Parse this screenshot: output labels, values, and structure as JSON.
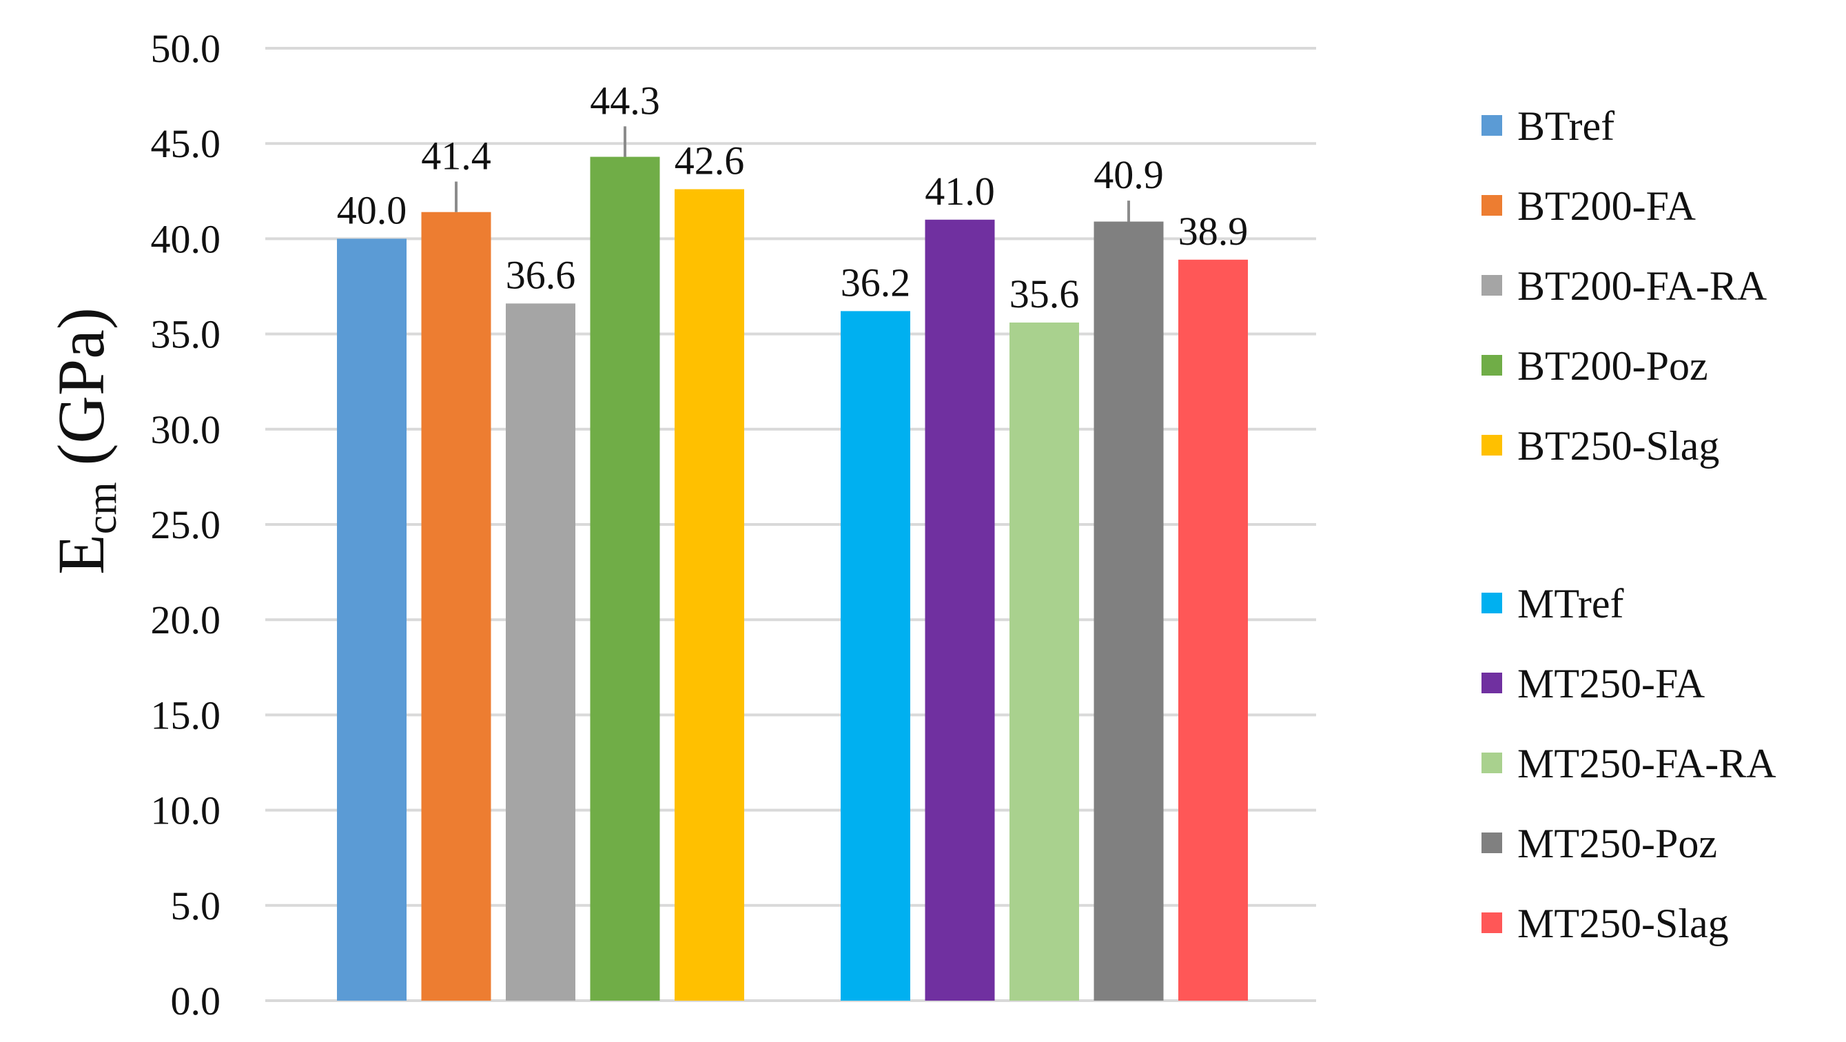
{
  "chart_data": {
    "type": "bar",
    "ylabel": "E",
    "ylabel_subscript": "cm",
    "ylabel_unit": " (GPa)",
    "ylim": [
      0,
      50
    ],
    "yticks": [
      "0.0",
      "5.0",
      "10.0",
      "15.0",
      "20.0",
      "25.0",
      "30.0",
      "35.0",
      "40.0",
      "45.0",
      "50.0"
    ],
    "grid": true,
    "legend_position": "right",
    "groups": [
      {
        "bars": [
          {
            "name": "BTref",
            "value": 40.0,
            "label": "40.0",
            "color": "#5b9bd5",
            "error": 0
          },
          {
            "name": "BT200-FA",
            "value": 41.4,
            "label": "41.4",
            "color": "#ed7d31",
            "error": 1.6
          },
          {
            "name": "BT200-FA-RA",
            "value": 36.6,
            "label": "36.6",
            "color": "#a5a5a5",
            "error": 0
          },
          {
            "name": "BT200-Poz",
            "value": 44.3,
            "label": "44.3",
            "color": "#70ad47",
            "error": 1.6
          },
          {
            "name": "BT250-Slag",
            "value": 42.6,
            "label": "42.6",
            "color": "#ffc000",
            "error": 0
          }
        ]
      },
      {
        "bars": [
          {
            "name": "MTref",
            "value": 36.2,
            "label": "36.2",
            "color": "#00b0f0",
            "error": 0
          },
          {
            "name": "MT250-FA",
            "value": 41.0,
            "label": "41.0",
            "color": "#7030a0",
            "error": 0
          },
          {
            "name": "MT250-FA-RA",
            "value": 35.6,
            "label": "35.6",
            "color": "#a9d18e",
            "error": 0
          },
          {
            "name": "MT250-Poz",
            "value": 40.9,
            "label": "40.9",
            "color": "#808080",
            "error": 1.1
          },
          {
            "name": "MT250-Slag",
            "value": 38.9,
            "label": "38.9",
            "color": "#ff5757",
            "error": 0
          }
        ]
      }
    ]
  }
}
